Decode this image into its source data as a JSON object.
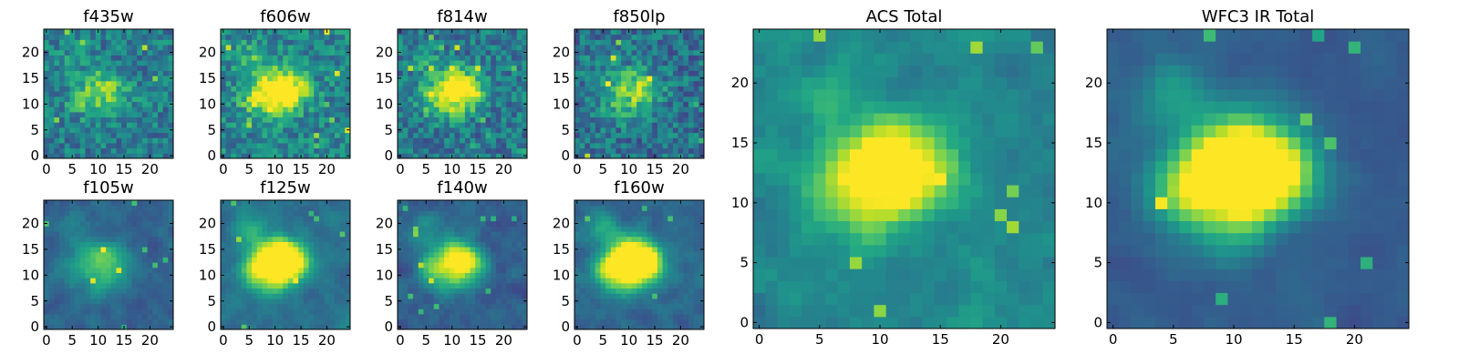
{
  "chart_data": [
    {
      "type": "heatmap",
      "title": "f435w",
      "grid_size": 25,
      "seed": 11,
      "blob": 0.15,
      "base": 0.42,
      "noise": 0.17,
      "contrast": 1.0,
      "sigma": 0.6,
      "xticks": [
        0,
        5,
        10,
        15,
        20
      ],
      "yticks": [
        0,
        5,
        10,
        15,
        20
      ]
    },
    {
      "type": "heatmap",
      "title": "f606w",
      "grid_size": 25,
      "seed": 22,
      "blob": 0.3,
      "base": 0.46,
      "noise": 0.17,
      "contrast": 1.0,
      "sigma": 0.6,
      "xticks": [
        0,
        5,
        10,
        15,
        20
      ],
      "yticks": [
        0,
        5,
        10,
        15,
        20
      ]
    },
    {
      "type": "heatmap",
      "title": "f814w",
      "grid_size": 25,
      "seed": 33,
      "blob": 0.3,
      "base": 0.4,
      "noise": 0.18,
      "contrast": 1.0,
      "sigma": 0.6,
      "xticks": [
        0,
        5,
        10,
        15,
        20
      ],
      "yticks": [
        0,
        5,
        10,
        15,
        20
      ]
    },
    {
      "type": "heatmap",
      "title": "f850lp",
      "grid_size": 25,
      "seed": 44,
      "blob": 0.18,
      "base": 0.38,
      "noise": 0.18,
      "contrast": 1.0,
      "sigma": 0.6,
      "xticks": [
        0,
        5,
        10,
        15,
        20
      ],
      "yticks": [
        0,
        5,
        10,
        15,
        20
      ]
    },
    {
      "type": "heatmap",
      "title": "f105w",
      "grid_size": 25,
      "seed": 55,
      "blob": 0.18,
      "base": 0.33,
      "noise": 0.14,
      "contrast": 1.0,
      "sigma": 0.8,
      "xticks": [
        0,
        5,
        10,
        15,
        20
      ],
      "yticks": [
        0,
        5,
        10,
        15,
        20
      ]
    },
    {
      "type": "heatmap",
      "title": "f125w",
      "grid_size": 25,
      "seed": 66,
      "blob": 0.45,
      "base": 0.38,
      "noise": 0.13,
      "contrast": 1.0,
      "sigma": 0.8,
      "xticks": [
        0,
        5,
        10,
        15,
        20
      ],
      "yticks": [
        0,
        5,
        10,
        15,
        20
      ]
    },
    {
      "type": "heatmap",
      "title": "f140w",
      "grid_size": 25,
      "seed": 77,
      "blob": 0.32,
      "base": 0.3,
      "noise": 0.15,
      "contrast": 1.0,
      "sigma": 0.8,
      "xticks": [
        0,
        5,
        10,
        15,
        20
      ],
      "yticks": [
        0,
        5,
        10,
        15,
        20
      ]
    },
    {
      "type": "heatmap",
      "title": "f160w",
      "grid_size": 25,
      "seed": 88,
      "blob": 0.5,
      "base": 0.34,
      "noise": 0.13,
      "contrast": 1.0,
      "sigma": 0.8,
      "xticks": [
        0,
        5,
        10,
        15,
        20
      ],
      "yticks": [
        0,
        5,
        10,
        15,
        20
      ]
    },
    {
      "type": "heatmap",
      "title": "ACS Total",
      "grid_size": 25,
      "seed": 99,
      "blob": 0.3,
      "base": 0.46,
      "noise": 0.16,
      "contrast": 1.0,
      "sigma": 0.7,
      "xticks": [
        0,
        5,
        10,
        15,
        20
      ],
      "yticks": [
        0,
        5,
        10,
        15,
        20
      ]
    },
    {
      "type": "heatmap",
      "title": "WFC3 IR Total",
      "grid_size": 25,
      "seed": 111,
      "blob": 0.5,
      "base": 0.3,
      "noise": 0.09,
      "contrast": 1.0,
      "sigma": 0.9,
      "xticks": [
        0,
        5,
        10,
        15,
        20
      ],
      "yticks": [
        0,
        5,
        10,
        15,
        20
      ]
    }
  ],
  "colormap": "viridis",
  "colors": {
    "axis": "#000000",
    "background": "#ffffff"
  }
}
